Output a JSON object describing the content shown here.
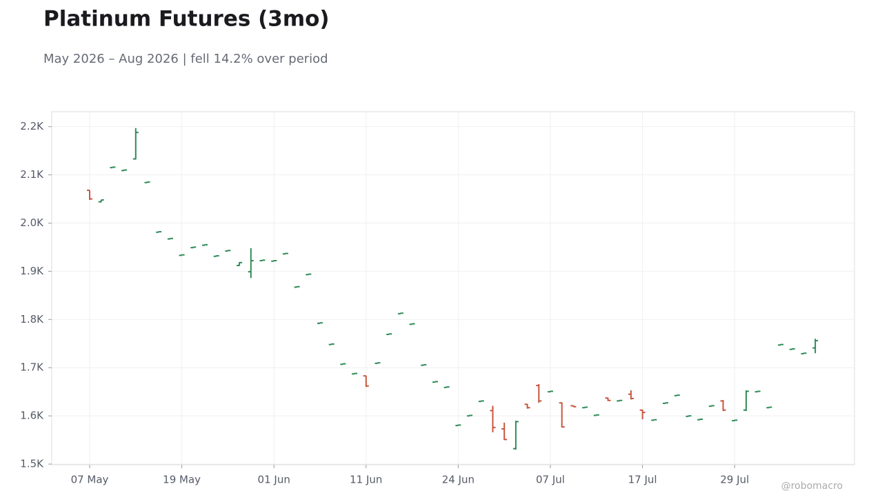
{
  "chart_data": {
    "type": "ohlc",
    "title": "Platinum Futures (3mo)",
    "subtitle": "May 2026 – Aug 2026 | fell 14.2% over period",
    "watermark": "@robomacro",
    "categories": [
      "07 May",
      null,
      null,
      null,
      null,
      null,
      null,
      null,
      "19 May",
      null,
      null,
      null,
      null,
      null,
      null,
      null,
      "01 Jun",
      null,
      null,
      null,
      null,
      null,
      null,
      null,
      "11 Jun",
      null,
      null,
      null,
      null,
      null,
      null,
      null,
      "24 Jun",
      null,
      null,
      null,
      null,
      null,
      null,
      null,
      "07 Jul",
      null,
      null,
      null,
      null,
      null,
      null,
      null,
      "17 Jul",
      null,
      null,
      null,
      null,
      null,
      null,
      null,
      "29 Jul",
      null,
      null,
      null,
      null,
      null,
      null,
      null
    ],
    "open": [
      2068,
      2044,
      2115,
      2109,
      2133,
      2084,
      1981,
      1967,
      1933,
      1949,
      1954,
      1931,
      1942,
      1912,
      1899,
      1922,
      1921,
      1936,
      1867,
      1893,
      1792,
      1748,
      1707,
      1687,
      1683,
      1709,
      1769,
      1812,
      1790,
      1705,
      1670,
      1659,
      1580,
      1600,
      1630,
      1611,
      1573,
      1532,
      1624,
      1663,
      1650,
      1627,
      1621,
      1617,
      1601,
      1637,
      1631,
      1645,
      1612,
      1591,
      1626,
      1642,
      1599,
      1592,
      1620,
      1631,
      1590,
      1612,
      1650,
      1617,
      1747,
      1738,
      1729,
      1741
    ],
    "high": [
      2068,
      2048,
      2117,
      2111,
      2197,
      2086,
      1983,
      1969,
      1935,
      1951,
      1956,
      1933,
      1944,
      1919,
      1948,
      1924,
      1923,
      1938,
      1869,
      1895,
      1794,
      1750,
      1709,
      1689,
      1683,
      1711,
      1771,
      1814,
      1792,
      1707,
      1672,
      1661,
      1582,
      1602,
      1632,
      1621,
      1586,
      1590,
      1625,
      1666,
      1652,
      1628,
      1622,
      1619,
      1603,
      1638,
      1633,
      1653,
      1613,
      1593,
      1628,
      1644,
      1601,
      1594,
      1622,
      1633,
      1592,
      1653,
      1652,
      1619,
      1749,
      1740,
      1731,
      1760
    ],
    "low": [
      2048,
      2043,
      2115,
      2109,
      2132,
      2084,
      1981,
      1967,
      1933,
      1949,
      1954,
      1931,
      1942,
      1911,
      1886,
      1922,
      1921,
      1936,
      1867,
      1893,
      1792,
      1748,
      1707,
      1687,
      1660,
      1709,
      1769,
      1812,
      1790,
      1705,
      1670,
      1659,
      1580,
      1600,
      1630,
      1566,
      1550,
      1530,
      1615,
      1627,
      1650,
      1576,
      1619,
      1617,
      1601,
      1631,
      1631,
      1634,
      1593,
      1591,
      1626,
      1642,
      1599,
      1592,
      1620,
      1610,
      1590,
      1610,
      1650,
      1617,
      1747,
      1738,
      1729,
      1730
    ],
    "close": [
      2050,
      2048,
      2116,
      2110,
      2188,
      2085,
      1982,
      1968,
      1934,
      1950,
      1955,
      1932,
      1943,
      1918,
      1922,
      1923,
      1922,
      1937,
      1868,
      1894,
      1793,
      1749,
      1708,
      1688,
      1662,
      1710,
      1770,
      1813,
      1791,
      1706,
      1671,
      1660,
      1581,
      1601,
      1631,
      1576,
      1551,
      1588,
      1617,
      1631,
      1651,
      1577,
      1619,
      1618,
      1602,
      1632,
      1632,
      1636,
      1607,
      1592,
      1627,
      1643,
      1600,
      1593,
      1621,
      1612,
      1591,
      1651,
      1651,
      1618,
      1748,
      1739,
      1730,
      1756
    ],
    "up_color": "#2e8b57",
    "down_color": "#c8553d",
    "ylim": [
      1498.6,
      2231
    ],
    "yticks": [
      {
        "value": 1500,
        "label": "1.5K"
      },
      {
        "value": 1600,
        "label": "1.6K"
      },
      {
        "value": 1700,
        "label": "1.7K"
      },
      {
        "value": 1800,
        "label": "1.8K"
      },
      {
        "value": 1900,
        "label": "1.9K"
      },
      {
        "value": 2000,
        "label": "2.0K"
      },
      {
        "value": 2100,
        "label": "2.1K"
      },
      {
        "value": 2200,
        "label": "2.2K"
      }
    ],
    "grid": true
  }
}
